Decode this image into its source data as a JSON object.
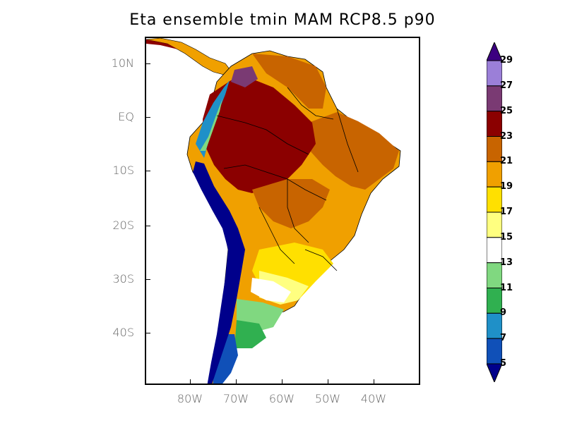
{
  "title": "Eta ensemble tmin MAM RCP8.5 p90",
  "lat_labels": [
    "10N",
    "EQ",
    "10S",
    "20S",
    "30S",
    "40S"
  ],
  "lon_labels": [
    "80W",
    "70W",
    "60W",
    "50W",
    "40W"
  ],
  "colorbar": {
    "levels": [
      "29",
      "27",
      "25",
      "23",
      "21",
      "19",
      "17",
      "15",
      "13",
      "11",
      "9",
      "7",
      "5"
    ],
    "colors_top_to_bottom": [
      "#3c0080",
      "#9b7fd8",
      "#7a3a73",
      "#8b0000",
      "#c86400",
      "#f0a000",
      "#ffe000",
      "#ffff80",
      "#ffffff",
      "#80d880",
      "#30b050",
      "#1f90c8",
      "#1050b8",
      "#00008b"
    ]
  },
  "regions_colors": {
    "amazon": "#8b0000",
    "andes_cold": "#00008b",
    "andes_mid": "#1050b8",
    "northeast": "#c86400",
    "southeast": "#f0a000",
    "pampas": "#ffe000",
    "patagonia": "#30b050"
  }
}
